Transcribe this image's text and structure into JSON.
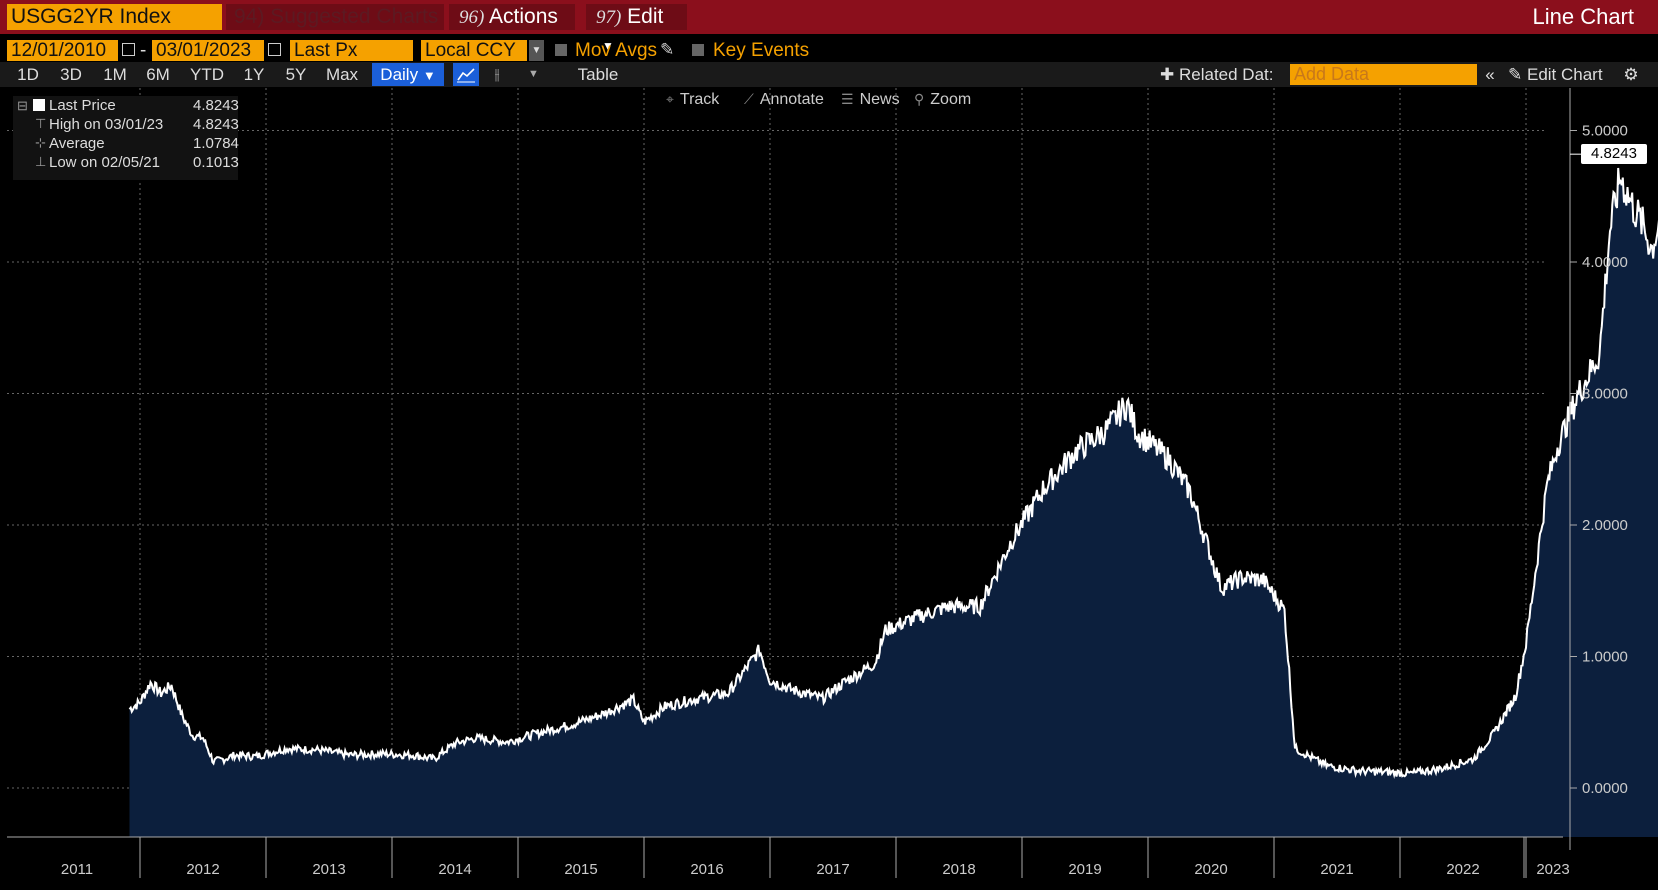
{
  "header": {
    "ticker": "USGG2YR Index",
    "suggested": "94) Suggested Charts",
    "actions_num": "96)",
    "actions_label": "Actions",
    "edit_num": "97)",
    "edit_label": "Edit",
    "chart_type_label": "Line Chart"
  },
  "controls": {
    "start_date": "12/01/2010",
    "date_separator": "-",
    "end_date": "03/01/2023",
    "field": "Last Px",
    "currency": "Local CCY",
    "mov_avgs": "Mov Avgs",
    "key_events": "Key Events",
    "timeframes": [
      "1D",
      "3D",
      "1M",
      "6M",
      "YTD",
      "1Y",
      "5Y",
      "Max"
    ],
    "frequency": "Daily",
    "table_label": "Table",
    "related_data": "Related Dat:",
    "add_data_placeholder": "Add Data",
    "edit_chart": "Edit Chart"
  },
  "tools": [
    "Track",
    "Annotate",
    "News",
    "Zoom"
  ],
  "legend": {
    "last_price_label": "Last Price",
    "last_price_value": "4.8243",
    "high_label": "High on 03/01/23",
    "high_value": "4.8243",
    "average_label": "Average",
    "average_value": "1.0784",
    "low_label": "Low on 02/05/21",
    "low_value": "0.1013"
  },
  "last_value_badge": "4.8243",
  "colors": {
    "header_red": "#8b0f1c",
    "accent_orange": "#f5a100",
    "area_fill": "#0c1f3d",
    "line": "#ffffff",
    "selected_blue": "#1b5fd9"
  },
  "chart_data": {
    "type": "area",
    "title": "",
    "xlabel": "",
    "ylabel": "",
    "ylim": [
      -0.35,
      5.0
    ],
    "y_ticks": [
      "5.0000",
      "4.0000",
      "3.0000",
      "2.0000",
      "1.0000",
      "0.0000"
    ],
    "x_tick_labels": [
      "2011",
      "2012",
      "2013",
      "2014",
      "2015",
      "2016",
      "2017",
      "2018",
      "2019",
      "2020",
      "2021",
      "2022",
      "2023"
    ],
    "series": [
      {
        "name": "",
        "x": [
          "2010-12",
          "2011-01",
          "2011-02",
          "2011-03",
          "2011-04",
          "2011-05",
          "2011-06",
          "2011-07",
          "2011-08",
          "2011-09",
          "2011-10",
          "2011-12",
          "2012-03",
          "2012-06",
          "2012-09",
          "2012-12",
          "2013-03",
          "2013-05",
          "2013-07",
          "2013-09",
          "2013-12",
          "2014-03",
          "2014-06",
          "2014-09",
          "2014-12",
          "2015-01",
          "2015-03",
          "2015-06",
          "2015-09",
          "2015-12",
          "2016-01",
          "2016-03",
          "2016-06",
          "2016-08",
          "2016-11",
          "2016-12",
          "2017-03",
          "2017-06",
          "2017-09",
          "2017-12",
          "2018-03",
          "2018-06",
          "2018-09",
          "2018-11",
          "2018-12",
          "2019-03",
          "2019-05",
          "2019-08",
          "2019-10",
          "2019-12",
          "2020-02",
          "2020-03",
          "2020-06",
          "2020-09",
          "2020-12",
          "2021-02",
          "2021-05",
          "2021-08",
          "2021-10",
          "2021-12",
          "2022-01",
          "2022-03",
          "2022-04",
          "2022-05",
          "2022-06",
          "2022-08",
          "2022-09",
          "2022-10",
          "2022-11",
          "2022-12",
          "2023-01",
          "2023-02",
          "2023-03"
        ],
        "y": [
          0.6,
          0.65,
          0.8,
          0.72,
          0.78,
          0.55,
          0.4,
          0.38,
          0.2,
          0.22,
          0.25,
          0.24,
          0.3,
          0.29,
          0.25,
          0.26,
          0.25,
          0.22,
          0.34,
          0.38,
          0.35,
          0.42,
          0.48,
          0.56,
          0.67,
          0.5,
          0.62,
          0.68,
          0.72,
          1.05,
          0.82,
          0.75,
          0.68,
          0.8,
          0.95,
          1.2,
          1.3,
          1.38,
          1.38,
          1.88,
          2.27,
          2.55,
          2.72,
          2.92,
          2.7,
          2.5,
          2.25,
          1.52,
          1.6,
          1.58,
          1.35,
          0.3,
          0.17,
          0.13,
          0.12,
          0.11,
          0.15,
          0.22,
          0.42,
          0.7,
          1.1,
          2.3,
          2.6,
          2.8,
          3.0,
          3.3,
          4.25,
          4.65,
          4.45,
          4.3,
          4.1,
          4.4,
          4.82
        ]
      }
    ],
    "legend_position": "top-left",
    "grid": true
  }
}
